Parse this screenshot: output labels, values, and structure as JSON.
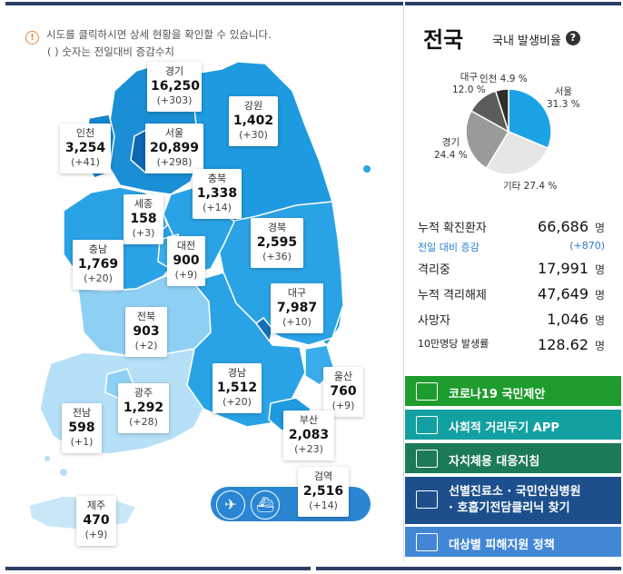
{
  "notice": {
    "line1": "시도를 클릭하시면 상세 현황을 확인할 수 있습니다.",
    "line2": "( ) 숫자는 전일대비 증감수치",
    "icon": "info-icon"
  },
  "regions": [
    {
      "key": "gyeonggi",
      "name": "경기",
      "count": "16,250",
      "diff": "(+303)"
    },
    {
      "key": "gangwon",
      "name": "강원",
      "count": "1,402",
      "diff": "(+30)"
    },
    {
      "key": "incheon",
      "name": "인천",
      "count": "3,254",
      "diff": "(+41)"
    },
    {
      "key": "seoul",
      "name": "서울",
      "count": "20,899",
      "diff": "(+298)"
    },
    {
      "key": "chungbuk",
      "name": "충북",
      "count": "1,338",
      "diff": "(+14)"
    },
    {
      "key": "sejong",
      "name": "세종",
      "count": "158",
      "diff": "(+3)"
    },
    {
      "key": "daejeon",
      "name": "대전",
      "count": "900",
      "diff": "(+9)"
    },
    {
      "key": "gyeongbuk",
      "name": "경북",
      "count": "2,595",
      "diff": "(+36)"
    },
    {
      "key": "chungnam",
      "name": "충남",
      "count": "1,769",
      "diff": "(+20)"
    },
    {
      "key": "daegu",
      "name": "대구",
      "count": "7,987",
      "diff": "(+10)"
    },
    {
      "key": "jeonbuk",
      "name": "전북",
      "count": "903",
      "diff": "(+2)"
    },
    {
      "key": "gyeongnam",
      "name": "경남",
      "count": "1,512",
      "diff": "(+20)"
    },
    {
      "key": "ulsan",
      "name": "울산",
      "count": "760",
      "diff": "(+9)"
    },
    {
      "key": "gwangju",
      "name": "광주",
      "count": "1,292",
      "diff": "(+28)"
    },
    {
      "key": "jeonnam",
      "name": "전남",
      "count": "598",
      "diff": "(+1)"
    },
    {
      "key": "busan",
      "name": "부산",
      "count": "2,083",
      "diff": "(+23)"
    },
    {
      "key": "quarantine",
      "name": "검역",
      "count": "2,516",
      "diff": "(+14)"
    },
    {
      "key": "jeju",
      "name": "제주",
      "count": "470",
      "diff": "(+9)"
    }
  ],
  "travel_icons": [
    "airplane-icon",
    "ship-icon"
  ],
  "panel": {
    "title": "전국",
    "subtitle": "국내 발생비율",
    "help": "?"
  },
  "chart_data": {
    "type": "pie",
    "title": "국내 발생비율",
    "slices": [
      {
        "label": "서울",
        "value": 31.3,
        "text": "31.3 %",
        "color": "#1ba3e6"
      },
      {
        "label": "기타",
        "value": 27.4,
        "text": "27.4 %",
        "color": "#e6e6e6"
      },
      {
        "label": "경기",
        "value": 24.4,
        "text": "24.4 %",
        "color": "#9a9a9a"
      },
      {
        "label": "대구",
        "value": 12.0,
        "text": "12.0 %",
        "color": "#5c5c5c"
      },
      {
        "label": "인천",
        "value": 4.9,
        "text": "4.9 %",
        "color": "#2e2e2e"
      }
    ]
  },
  "stats": [
    {
      "label": "누적 확진환자",
      "value": "66,686",
      "unit": "명"
    },
    {
      "label": "전일 대비 증감",
      "value": "(+870)",
      "unit": ""
    },
    {
      "label": "격리중",
      "value": "17,991",
      "unit": "명"
    },
    {
      "label": "누적 격리해제",
      "value": "47,649",
      "unit": "명"
    },
    {
      "label": "사망자",
      "value": "1,046",
      "unit": "명"
    },
    {
      "label": "10만명당 발생률",
      "value": "128.62",
      "unit": "명"
    }
  ],
  "buttons": [
    {
      "label": "코로나19 국민제안",
      "color": "#1f9c2e",
      "icon": "proposal-icon"
    },
    {
      "label": "사회적 거리두기 APP",
      "color": "#13a0a1",
      "icon": "distancing-icon"
    },
    {
      "label": "자치체용 대응지침",
      "color": "#1c7a57",
      "icon": "guideline-icon"
    },
    {
      "label": "선별진료소 · 국민안심병원\n· 호흡기전담클리닉 찾기",
      "color": "#1c4f8c",
      "icon": "hospital-icon"
    },
    {
      "label": "대상별 피해지원 정책",
      "color": "#4287d6",
      "icon": "folder-icon"
    }
  ]
}
